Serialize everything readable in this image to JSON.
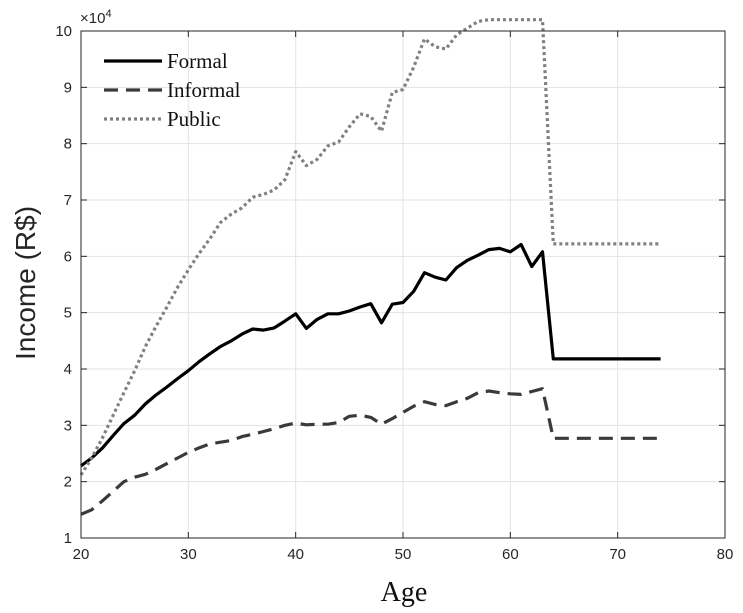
{
  "chart_data": {
    "type": "line",
    "xlabel": "Age",
    "ylabel": "Income (R$)",
    "y_exponent_label": "×10",
    "y_exponent_power": "4",
    "xlim": [
      20,
      80
    ],
    "ylim": [
      1,
      10
    ],
    "xticks": [
      "20",
      "30",
      "40",
      "50",
      "60",
      "70",
      "80"
    ],
    "yticks": [
      "1",
      "2",
      "3",
      "4",
      "5",
      "6",
      "7",
      "8",
      "9",
      "10"
    ],
    "grid": true,
    "legend_position": "top-left",
    "series": [
      {
        "name": "Formal",
        "color": "#000000",
        "style": "solid",
        "x": [
          20,
          21,
          22,
          23,
          24,
          25,
          26,
          27,
          28,
          29,
          30,
          31,
          32,
          33,
          34,
          35,
          36,
          37,
          38,
          39,
          40,
          41,
          42,
          43,
          44,
          45,
          46,
          47,
          48,
          49,
          50,
          51,
          52,
          53,
          54,
          55,
          56,
          57,
          58,
          59,
          60,
          61,
          62,
          63,
          64,
          65,
          66,
          67,
          68,
          69,
          70,
          71,
          72,
          73,
          74
        ],
        "y": [
          2.28,
          2.42,
          2.6,
          2.82,
          3.03,
          3.18,
          3.38,
          3.54,
          3.68,
          3.83,
          3.97,
          4.13,
          4.27,
          4.4,
          4.5,
          4.62,
          4.71,
          4.69,
          4.73,
          4.85,
          4.98,
          4.72,
          4.88,
          4.98,
          4.98,
          5.03,
          5.1,
          5.16,
          4.82,
          5.15,
          5.18,
          5.38,
          5.71,
          5.63,
          5.58,
          5.8,
          5.93,
          6.02,
          6.12,
          6.14,
          6.08,
          6.21,
          5.82,
          6.08,
          4.18,
          4.18,
          4.18,
          4.18,
          4.18,
          4.18,
          4.18,
          4.18,
          4.18,
          4.18,
          4.18
        ]
      },
      {
        "name": "Informal",
        "color": "#3a3a3a",
        "style": "dashed",
        "x": [
          20,
          21,
          22,
          23,
          24,
          25,
          26,
          27,
          28,
          29,
          30,
          31,
          32,
          33,
          34,
          35,
          36,
          37,
          38,
          39,
          40,
          41,
          42,
          43,
          44,
          45,
          46,
          47,
          48,
          49,
          50,
          51,
          52,
          53,
          54,
          55,
          56,
          57,
          58,
          59,
          60,
          61,
          62,
          63,
          64,
          65,
          66,
          67,
          68,
          69,
          70,
          71,
          72,
          73,
          74
        ],
        "y": [
          1.42,
          1.5,
          1.66,
          1.83,
          2.0,
          2.08,
          2.13,
          2.22,
          2.32,
          2.42,
          2.52,
          2.6,
          2.67,
          2.7,
          2.73,
          2.8,
          2.84,
          2.89,
          2.94,
          3.0,
          3.04,
          3.01,
          3.02,
          3.02,
          3.05,
          3.16,
          3.18,
          3.14,
          3.02,
          3.12,
          3.23,
          3.34,
          3.42,
          3.37,
          3.35,
          3.42,
          3.48,
          3.58,
          3.61,
          3.58,
          3.56,
          3.55,
          3.6,
          3.65,
          2.77,
          2.77,
          2.77,
          2.77,
          2.77,
          2.77,
          2.77,
          2.77,
          2.77,
          2.77,
          2.77
        ]
      },
      {
        "name": "Public",
        "color": "#808080",
        "style": "dotted",
        "x": [
          20,
          21,
          22,
          23,
          24,
          25,
          26,
          27,
          28,
          29,
          30,
          31,
          32,
          33,
          34,
          35,
          36,
          37,
          38,
          39,
          40,
          41,
          42,
          43,
          44,
          45,
          46,
          47,
          48,
          49,
          50,
          51,
          52,
          53,
          54,
          55,
          56,
          57,
          58,
          59,
          60,
          61,
          62,
          63,
          64,
          65,
          66,
          67,
          68,
          69,
          70,
          71,
          72,
          73,
          74
        ],
        "y": [
          2.12,
          2.42,
          2.78,
          3.18,
          3.58,
          3.97,
          4.4,
          4.76,
          5.1,
          5.45,
          5.76,
          6.05,
          6.31,
          6.6,
          6.75,
          6.86,
          7.05,
          7.1,
          7.18,
          7.36,
          7.86,
          7.61,
          7.72,
          7.96,
          8.03,
          8.3,
          8.53,
          8.48,
          8.22,
          8.91,
          8.96,
          9.36,
          9.86,
          9.72,
          9.68,
          9.93,
          10.05,
          10.17,
          10.37,
          10.26,
          10.59,
          10.63,
          10.28,
          10.31,
          6.22,
          6.22,
          6.22,
          6.22,
          6.22,
          6.22,
          6.22,
          6.22,
          6.22,
          6.22,
          6.22
        ]
      }
    ]
  }
}
